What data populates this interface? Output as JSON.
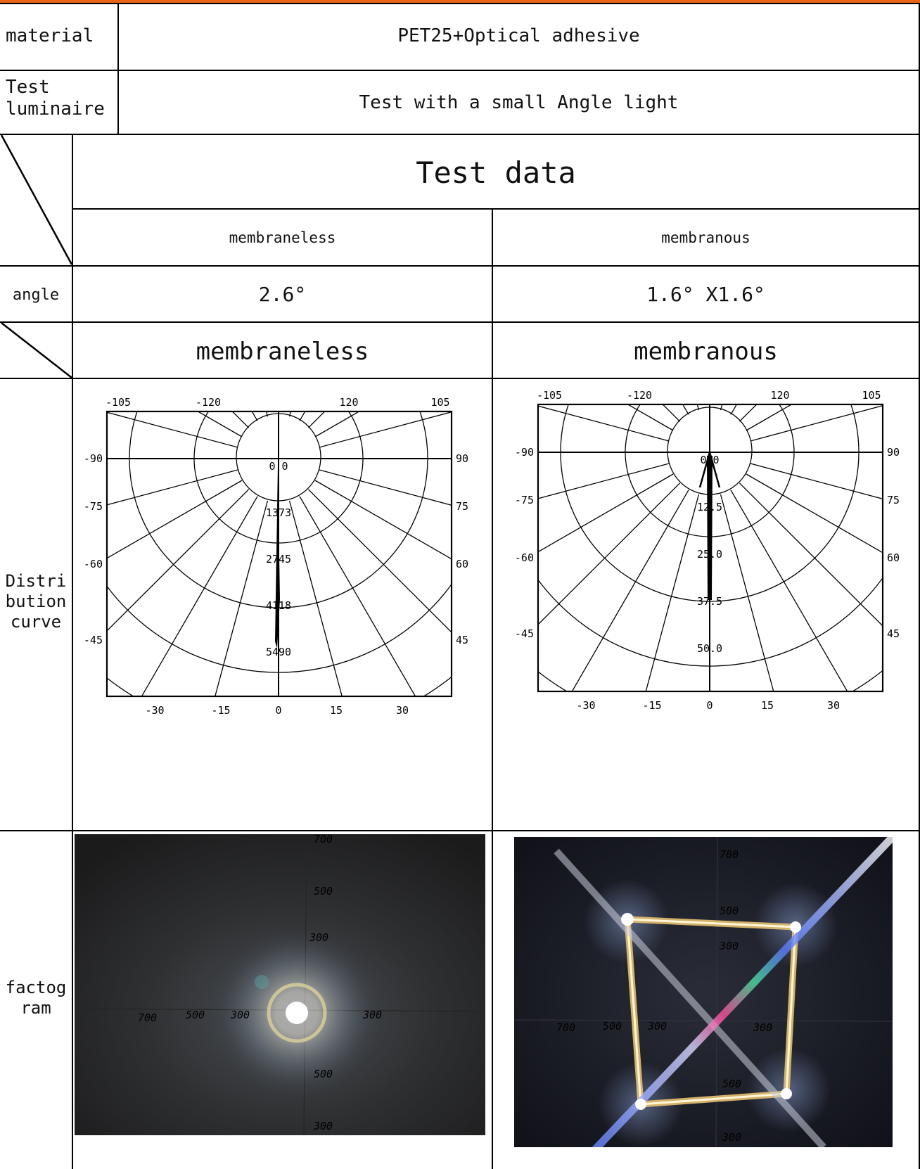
{
  "header_color": "#e8621a",
  "rows": {
    "material": {
      "label": "material",
      "value": "PET25+Optical adhesive"
    },
    "luminaire": {
      "label": "Test\nluminaire",
      "value": "Test with a small Angle light"
    },
    "test_data": {
      "title": "Test data",
      "col_left": "membraneless",
      "col_right": "membranous"
    },
    "angle": {
      "label": "angle",
      "left": "2.6°",
      "right": "1.6° X1.6°"
    },
    "headers2": {
      "left": "membraneless",
      "right": "membranous"
    },
    "distribution": {
      "label": "Distri\nbution\ncurve",
      "top_ticks": [
        "-105",
        "-120",
        "120",
        "105"
      ],
      "left_ticks": [
        "-90",
        "-75",
        "-60",
        "-45"
      ],
      "right_ticks": [
        "90",
        "75",
        "60",
        "45"
      ],
      "bottom_ticks": [
        "-30",
        "-15",
        "0",
        "15",
        "30"
      ],
      "left_chart": {
        "radial_labels": [
          "0 0",
          "1373",
          "2745",
          "4118",
          "5490"
        ]
      },
      "right_chart": {
        "radial_labels": [
          "0.0",
          "12.5",
          "25.0",
          "37.5",
          "50.0"
        ]
      }
    },
    "factogram": {
      "label": "factog\nram",
      "left_marks": [
        "700",
        "500",
        "300",
        "700",
        "500",
        "300",
        "300",
        "500",
        "300"
      ],
      "right_marks": [
        "700",
        "500",
        "300",
        "700",
        "500",
        "300",
        "300",
        "500",
        "300"
      ]
    }
  }
}
